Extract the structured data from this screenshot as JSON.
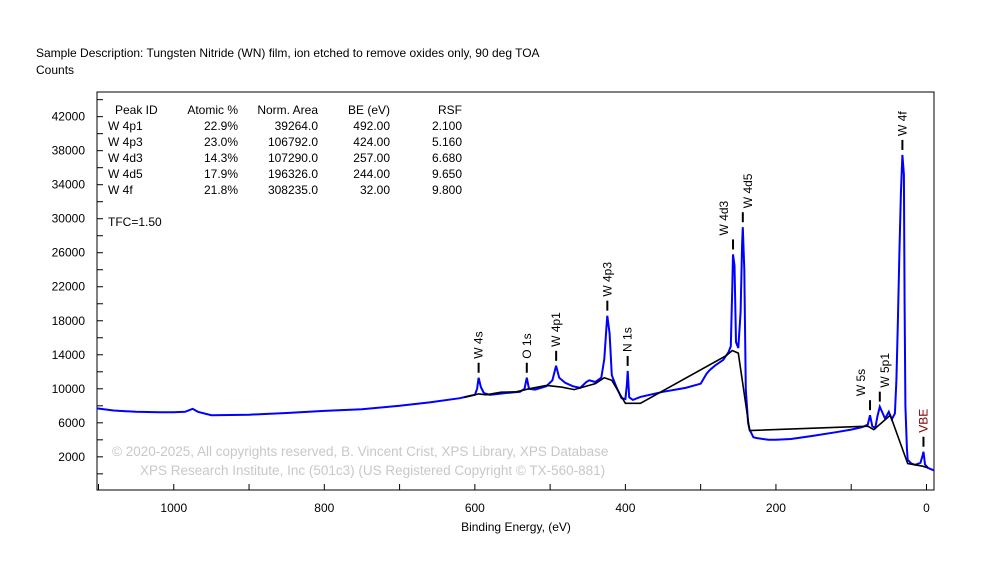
{
  "header": {
    "description": "Sample Description:  Tungsten Nitride (WN) film, ion etched to remove oxides only, 90 deg TOA",
    "y_unit": "Counts"
  },
  "table": {
    "columns": [
      "Peak ID",
      "Atomic %",
      "Norm. Area",
      "BE (eV)",
      "RSF"
    ],
    "rows": [
      [
        "W 4p1",
        "22.9%",
        "39264.0",
        "492.00",
        "2.100"
      ],
      [
        "W 4p3",
        "23.0%",
        "106792.0",
        "424.00",
        "5.160"
      ],
      [
        "W 4d3",
        "14.3%",
        "107290.0",
        "257.00",
        "6.680"
      ],
      [
        "W 4d5",
        "17.9%",
        "196326.0",
        "244.00",
        "9.650"
      ],
      [
        "W 4f",
        "21.8%",
        "308235.0",
        "32.00",
        "9.800"
      ]
    ],
    "tfc": "TFC=1.50"
  },
  "watermark": {
    "line1": "©  2020-2025,  All copyrights reserved,    B. Vincent Crist,  XPS Library, XPS Database",
    "line2": "XPS Research Institute, Inc (501c3)   (US Registered Copyright © TX-560-881)"
  },
  "chart_data": {
    "type": "line",
    "title": "",
    "xlabel": "Binding Energy, (eV)",
    "ylabel": "Counts",
    "xlim": [
      1102,
      -10
    ],
    "ylim": [
      -1900,
      44900
    ],
    "x_ticks": [
      1000,
      800,
      600,
      400,
      200,
      0
    ],
    "y_ticks": [
      2000,
      6000,
      10000,
      14000,
      18000,
      22000,
      26000,
      30000,
      34000,
      38000,
      42000
    ],
    "colors": {
      "spectrum": "#0000ff",
      "background": "#000000",
      "vbe_label": "#800000"
    },
    "series": [
      {
        "name": "spectrum",
        "points": [
          [
            1102,
            7700
          ],
          [
            1080,
            7450
          ],
          [
            1050,
            7300
          ],
          [
            1020,
            7250
          ],
          [
            1000,
            7250
          ],
          [
            985,
            7300
          ],
          [
            975,
            7650
          ],
          [
            968,
            7300
          ],
          [
            950,
            6900
          ],
          [
            900,
            6950
          ],
          [
            850,
            7150
          ],
          [
            800,
            7400
          ],
          [
            750,
            7600
          ],
          [
            700,
            8000
          ],
          [
            660,
            8400
          ],
          [
            620,
            8900
          ],
          [
            605,
            9200
          ],
          [
            600,
            9300
          ],
          [
            597,
            10000
          ],
          [
            595,
            11300
          ],
          [
            592,
            10200
          ],
          [
            588,
            9500
          ],
          [
            580,
            9300
          ],
          [
            560,
            9500
          ],
          [
            540,
            9650
          ],
          [
            534,
            10000
          ],
          [
            531,
            11300
          ],
          [
            528,
            10000
          ],
          [
            520,
            9900
          ],
          [
            505,
            10300
          ],
          [
            497,
            11000
          ],
          [
            492,
            12700
          ],
          [
            488,
            11300
          ],
          [
            480,
            10700
          ],
          [
            470,
            10300
          ],
          [
            460,
            10100
          ],
          [
            452,
            10800
          ],
          [
            448,
            11000
          ],
          [
            440,
            10800
          ],
          [
            432,
            11300
          ],
          [
            428,
            13500
          ],
          [
            425,
            17500
          ],
          [
            424,
            18600
          ],
          [
            421,
            16500
          ],
          [
            418,
            11600
          ],
          [
            412,
            10200
          ],
          [
            405,
            8900
          ],
          [
            400,
            8800
          ],
          [
            398,
            10500
          ],
          [
            397,
            12100
          ],
          [
            395,
            9000
          ],
          [
            390,
            8700
          ],
          [
            380,
            9050
          ],
          [
            350,
            9650
          ],
          [
            320,
            10100
          ],
          [
            300,
            10600
          ],
          [
            292,
            11800
          ],
          [
            288,
            12200
          ],
          [
            280,
            12800
          ],
          [
            270,
            13400
          ],
          [
            263,
            14300
          ],
          [
            260,
            15000
          ],
          [
            258,
            22000
          ],
          [
            257,
            25800
          ],
          [
            255,
            24500
          ],
          [
            253,
            15500
          ],
          [
            250,
            14800
          ],
          [
            247,
            19000
          ],
          [
            245,
            27000
          ],
          [
            244,
            29000
          ],
          [
            242,
            24000
          ],
          [
            240,
            9900
          ],
          [
            237,
            6000
          ],
          [
            235,
            5200
          ],
          [
            230,
            4300
          ],
          [
            225,
            4200
          ],
          [
            210,
            4000
          ],
          [
            200,
            4000
          ],
          [
            180,
            4100
          ],
          [
            150,
            4470
          ],
          [
            120,
            4900
          ],
          [
            100,
            5200
          ],
          [
            85,
            5500
          ],
          [
            78,
            5800
          ],
          [
            75,
            6900
          ],
          [
            72,
            5600
          ],
          [
            68,
            5400
          ],
          [
            65,
            6800
          ],
          [
            62,
            7900
          ],
          [
            58,
            7100
          ],
          [
            55,
            6500
          ],
          [
            50,
            7300
          ],
          [
            46,
            6400
          ],
          [
            42,
            7100
          ],
          [
            40,
            11000
          ],
          [
            38,
            18000
          ],
          [
            36,
            26000
          ],
          [
            34,
            33000
          ],
          [
            32,
            37500
          ],
          [
            30,
            35200
          ],
          [
            29,
            20000
          ],
          [
            28,
            8000
          ],
          [
            26,
            3000
          ],
          [
            25,
            1650
          ],
          [
            20,
            1200
          ],
          [
            15,
            1060
          ],
          [
            8,
            1300
          ],
          [
            5,
            2200
          ],
          [
            4,
            2600
          ],
          [
            2,
            1100
          ],
          [
            -2,
            700
          ],
          [
            -10,
            400
          ]
        ]
      },
      {
        "name": "background",
        "points": [
          [
            614,
            9000
          ],
          [
            595,
            9400
          ],
          [
            585,
            9300
          ],
          [
            565,
            9600
          ],
          [
            545,
            9650
          ],
          [
            528,
            10000
          ],
          [
            505,
            10400
          ],
          [
            485,
            10200
          ],
          [
            468,
            9900
          ],
          [
            440,
            10600
          ],
          [
            428,
            11300
          ],
          [
            418,
            11000
          ],
          [
            400,
            8300
          ],
          [
            380,
            8300
          ],
          [
            266,
            13900
          ],
          [
            258,
            14500
          ],
          [
            250,
            14200
          ],
          [
            235,
            5100
          ],
          [
            78,
            5600
          ],
          [
            70,
            5200
          ],
          [
            48,
            6900
          ],
          [
            25,
            1200
          ],
          [
            5,
            900
          ],
          [
            -2,
            700
          ]
        ]
      }
    ],
    "annotations": [
      {
        "label": "W 4s",
        "be": 595,
        "counts": 11300
      },
      {
        "label": "O 1s",
        "be": 531,
        "counts": 11300
      },
      {
        "label": "W 4p1",
        "be": 492,
        "counts": 12700
      },
      {
        "label": "W 4p3",
        "be": 424,
        "counts": 18600
      },
      {
        "label": "N 1s",
        "be": 397,
        "counts": 12100
      },
      {
        "label": "W 4d3",
        "be": 257,
        "counts": 25800
      },
      {
        "label": "W 4d5",
        "be": 244,
        "counts": 29000
      },
      {
        "label": "W 5s",
        "be": 75,
        "counts": 6900
      },
      {
        "label": "W 5p1",
        "be": 62,
        "counts": 7900
      },
      {
        "label": "W 4f",
        "be": 32,
        "counts": 37500
      },
      {
        "label": "VBE",
        "be": 4,
        "counts": 2600
      }
    ]
  }
}
